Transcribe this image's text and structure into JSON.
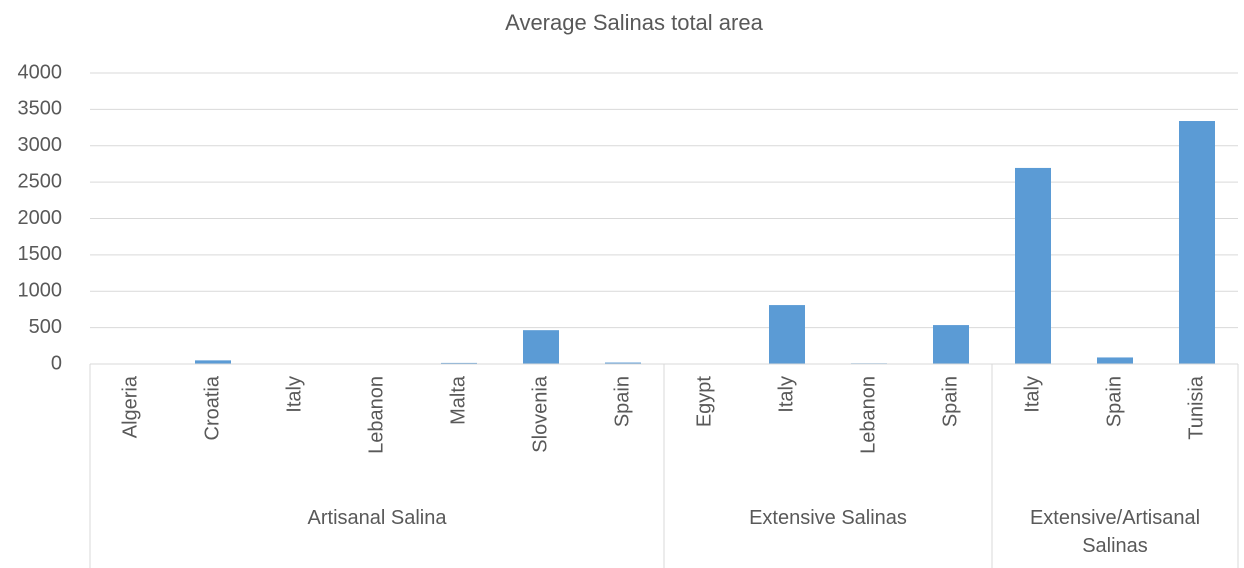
{
  "chart_data": {
    "type": "bar",
    "title": "Average Salinas total area",
    "color": "#5b9bd5",
    "ylim": [
      0,
      4000
    ],
    "yticks": [
      0,
      500,
      1000,
      1500,
      2000,
      2500,
      3000,
      3500,
      4000
    ],
    "grid": true,
    "groups": [
      {
        "name": "Artisanal Salina",
        "categories": [
          "Algeria",
          "Croatia",
          "Italy",
          "Lebanon",
          "Malta",
          "Slovenia",
          "Spain"
        ],
        "values": [
          2,
          50,
          3,
          2,
          15,
          465,
          20
        ]
      },
      {
        "name": "Extensive Salinas",
        "categories": [
          "Egypt",
          "Italy",
          "Lebanon",
          "Spain"
        ],
        "values": [
          2,
          810,
          10,
          535
        ]
      },
      {
        "name": "Extensive/Artisanal Salinas",
        "categories": [
          "Italy",
          "Spain",
          "Tunisia"
        ],
        "values": [
          2695,
          90,
          3340
        ]
      }
    ]
  }
}
